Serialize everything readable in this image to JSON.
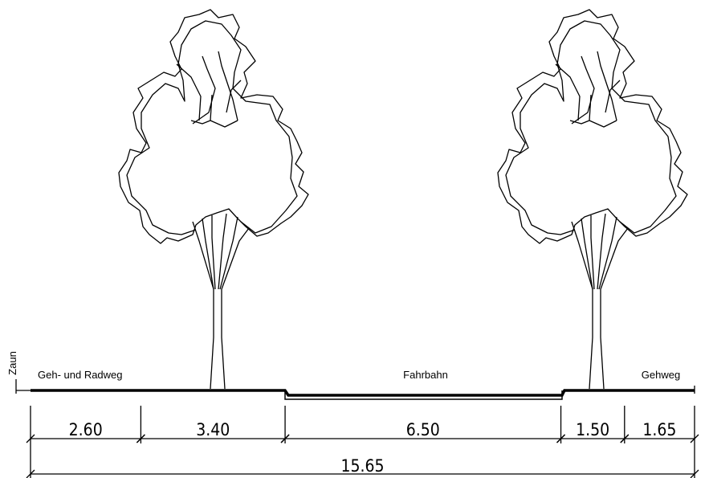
{
  "labels": {
    "fence": "Zaun",
    "left": "Geh- und Radweg",
    "road": "Fahrbahn",
    "right": "Gehweg"
  },
  "dimensions": {
    "segments": [
      {
        "value": 2.6,
        "label": "2.60"
      },
      {
        "value": 3.4,
        "label": "3.40"
      },
      {
        "value": 6.5,
        "label": "6.50"
      },
      {
        "value": 1.5,
        "label": "1.50"
      },
      {
        "value": 1.65,
        "label": "1.65"
      }
    ],
    "total": {
      "value": 15.65,
      "label": "15.65"
    }
  }
}
